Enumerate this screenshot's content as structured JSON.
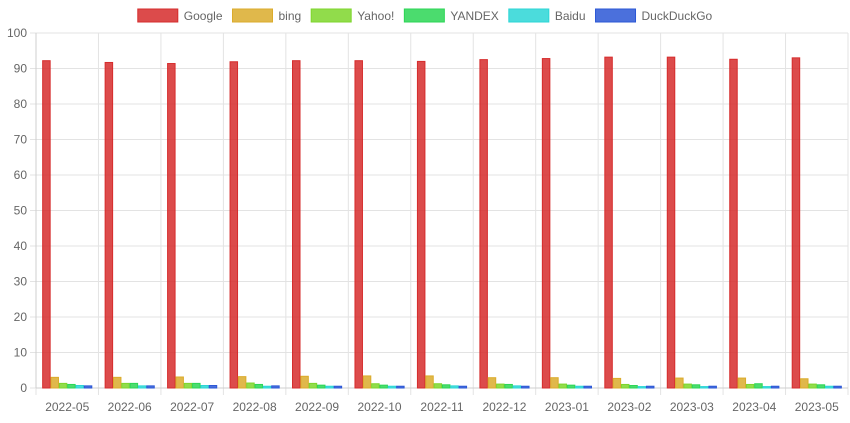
{
  "chart_data": {
    "type": "bar",
    "title": "",
    "xlabel": "",
    "ylabel": "",
    "ylim": [
      0,
      100
    ],
    "y_ticks": [
      0,
      10,
      20,
      30,
      40,
      50,
      60,
      70,
      80,
      90,
      100
    ],
    "grid": true,
    "legend_position": "top",
    "categories": [
      "2022-05",
      "2022-06",
      "2022-07",
      "2022-08",
      "2022-09",
      "2022-10",
      "2022-11",
      "2022-12",
      "2023-01",
      "2023-02",
      "2023-03",
      "2023-04",
      "2023-05"
    ],
    "series": [
      {
        "name": "Google",
        "color": "#d62c2c",
        "values": [
          92.2,
          91.7,
          91.4,
          91.9,
          92.2,
          92.2,
          92.0,
          92.5,
          92.8,
          93.2,
          93.2,
          92.6,
          93.0
        ]
      },
      {
        "name": "bing",
        "color": "#dbab2b",
        "values": [
          3.0,
          3.0,
          3.1,
          3.2,
          3.3,
          3.4,
          3.4,
          2.9,
          2.9,
          2.7,
          2.8,
          2.8,
          2.6
        ]
      },
      {
        "name": "Yahoo!",
        "color": "#7ed62c",
        "values": [
          1.3,
          1.3,
          1.3,
          1.4,
          1.3,
          1.2,
          1.2,
          1.1,
          1.1,
          1.0,
          1.1,
          1.0,
          1.1
        ]
      },
      {
        "name": "YANDEX",
        "color": "#2bd655",
        "values": [
          1.0,
          1.3,
          1.3,
          1.0,
          0.8,
          0.8,
          0.9,
          1.0,
          0.8,
          0.7,
          0.9,
          1.2,
          0.9
        ]
      },
      {
        "name": "Baidu",
        "color": "#2bd6d6",
        "values": [
          0.7,
          0.6,
          0.7,
          0.5,
          0.5,
          0.5,
          0.6,
          0.6,
          0.5,
          0.4,
          0.4,
          0.4,
          0.5
        ]
      },
      {
        "name": "DuckDuckGo",
        "color": "#2b57d6",
        "values": [
          0.6,
          0.6,
          0.7,
          0.6,
          0.5,
          0.5,
          0.5,
          0.5,
          0.5,
          0.5,
          0.5,
          0.5,
          0.5
        ]
      }
    ]
  }
}
